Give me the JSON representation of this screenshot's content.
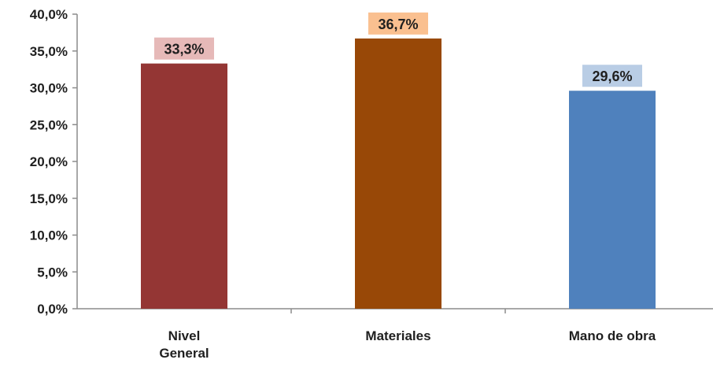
{
  "chart_data": {
    "type": "bar",
    "categories": [
      [
        "Nivel",
        "General"
      ],
      [
        "Materiales"
      ],
      [
        "Mano de obra"
      ]
    ],
    "values": [
      33.3,
      36.7,
      29.6
    ],
    "data_labels": [
      "33,3%",
      "36,7%",
      "29,6%"
    ],
    "bar_colors": [
      "#943634",
      "#984807",
      "#4f81bd"
    ],
    "label_backgrounds": [
      "#e6b9b8",
      "#fac090",
      "#b9cde5"
    ],
    "ylim": [
      0,
      40
    ],
    "yticks": [
      0,
      5,
      10,
      15,
      20,
      25,
      30,
      35,
      40
    ],
    "ytick_labels": [
      "0,0%",
      "5,0%",
      "10,0%",
      "15,0%",
      "20,0%",
      "25,0%",
      "30,0%",
      "35,0%",
      "40,0%"
    ],
    "grid": false,
    "legend": "none",
    "title": "",
    "xlabel": "",
    "ylabel": ""
  }
}
